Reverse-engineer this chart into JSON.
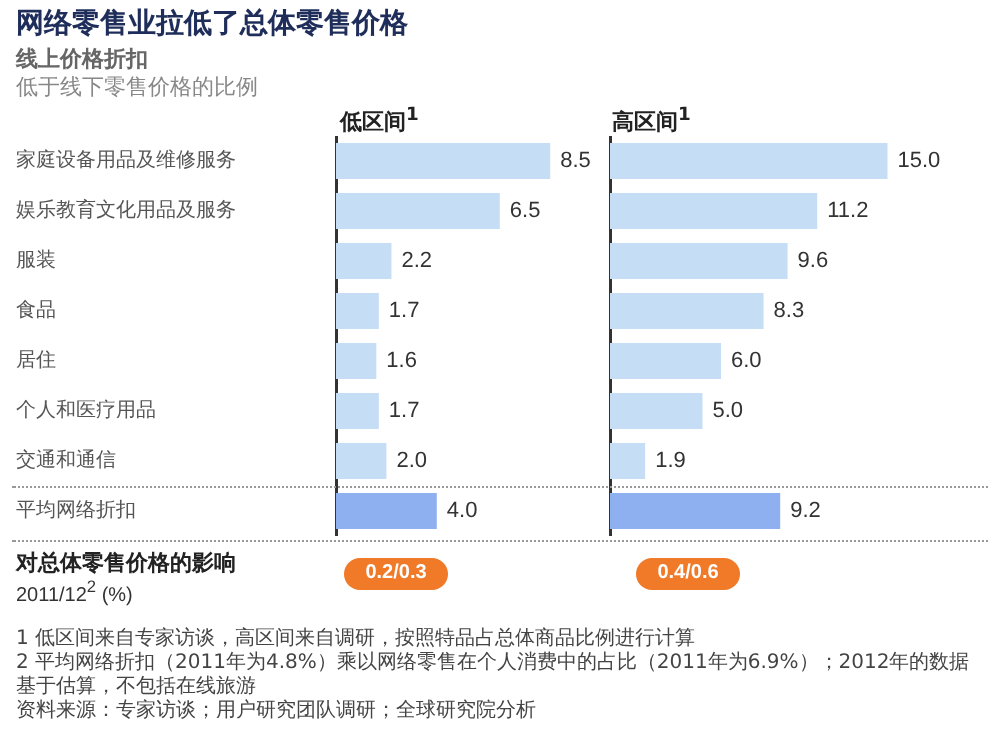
{
  "chart_data": [
    {
      "type": "bar",
      "orientation": "horizontal",
      "title": "网络零售业拉低了总体零售价格",
      "subtitle": "低区间$^{1}$",
      "categories": [
        "家庭设备用品及维修服务",
        "娱乐教育文化用品及服务",
        "服装",
        "食品",
        "居住",
        "个人和医疗用品",
        "交通和通信",
        "平均网络折扣"
      ],
      "values": [
        8.5,
        6.5,
        2.2,
        1.7,
        1.6,
        1.7,
        2.0,
        4.0
      ],
      "value_labels": [
        "8.5",
        "6.5",
        "2.2",
        "1.7",
        "1.6",
        "1.7",
        "2.0",
        "4.0"
      ],
      "colors": [
        "#c6ddf6",
        "#c6ddf6",
        "#c6ddf6",
        "#c6ddf6",
        "#c6ddf6",
        "#c6ddf6",
        "#c6ddf6",
        "#8eb0f0"
      ],
      "grid": false,
      "annotations": [
        "线上价格折扣",
        "低于线下零售价格的比例",
        "对总体零售价格的影响",
        "2011/12$^{2}$ (%)",
        "0.2/0.3",
        "1 低区间来自专家访谈，高区间来自调研，按照特品占总体商品比例进行计算",
        "2 平均网络折扣（2011年为4.8%）乘以网络零售在个人消费中的占比（2011年为6.9%）；2012年的数据基于估算，不包括在线旅游",
        "资料来源：专家访谈；用户研究团队调研；全球研究院分析"
      ]
    },
    {
      "type": "bar",
      "orientation": "horizontal",
      "subtitle": "高区间$^{1}$",
      "categories": [
        null,
        null,
        null,
        null,
        null,
        null,
        null,
        null
      ],
      "values": [
        15.0,
        11.2,
        9.6,
        8.3,
        6.0,
        5.0,
        1.9,
        9.2
      ],
      "value_labels": [
        "15.0",
        "11.2",
        "9.6",
        "8.3",
        "6.0",
        "5.0",
        "1.9",
        "9.2"
      ],
      "colors": [
        "#c6ddf6",
        "#c6ddf6",
        "#c6ddf6",
        "#c6ddf6",
        "#c6ddf6",
        "#c6ddf6",
        "#c6ddf6",
        "#8eb0f0"
      ],
      "grid": false,
      "tick_labels": false,
      "annotations": [
        "0.4/0.6"
      ]
    }
  ]
}
